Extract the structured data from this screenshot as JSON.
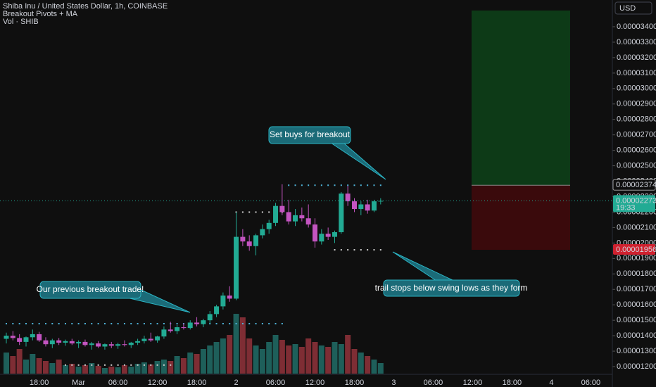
{
  "chart_data": {
    "type": "candlestick",
    "title": "Shiba Inu / United States Dollar, 1h, COINBASE",
    "indicators": [
      "Breakout Pivots + MA",
      "Vol · SHIB"
    ],
    "currency": "USD",
    "countdown": "19:33",
    "up_color": "#22ab94",
    "down_color": "#c354c0",
    "volume_up_color": "#1e5f5a",
    "volume_down_color": "#7e2d34",
    "grid": false,
    "categories": [
      null,
      null,
      null,
      null,
      null,
      "18:00",
      null,
      null,
      null,
      null,
      null,
      "Mar",
      null,
      null,
      null,
      null,
      null,
      "06:00",
      null,
      null,
      null,
      null,
      null,
      "12:00",
      null,
      null,
      null,
      null,
      null,
      "18:00",
      null,
      null,
      null,
      null,
      null,
      "2",
      null,
      null,
      null,
      null,
      null,
      "06:00",
      null,
      null,
      null,
      null,
      null,
      "12:00",
      null,
      null,
      null,
      null,
      null,
      "18:00",
      null,
      null,
      null,
      null
    ],
    "future_ticks": [
      "3",
      "06:00",
      "12:00",
      "18:00",
      "4",
      "06:00"
    ],
    "ohlc": [
      [
        1.38e-05,
        1.42e-05,
        1.35e-05,
        1.4e-05
      ],
      [
        1.4e-05,
        1.43e-05,
        1.37e-05,
        1.385e-05
      ],
      [
        1.385e-05,
        1.41e-05,
        1.34e-05,
        1.36e-05
      ],
      [
        1.36e-05,
        1.395e-05,
        1.33e-05,
        1.39e-05
      ],
      [
        1.39e-05,
        1.44e-05,
        1.37e-05,
        1.41e-05
      ],
      [
        1.41e-05,
        1.425e-05,
        1.36e-05,
        1.37e-05
      ],
      [
        1.37e-05,
        1.39e-05,
        1.33e-05,
        1.345e-05
      ],
      [
        1.345e-05,
        1.38e-05,
        1.32e-05,
        1.37e-05
      ],
      [
        1.37e-05,
        1.385e-05,
        1.34e-05,
        1.355e-05
      ],
      [
        1.355e-05,
        1.375e-05,
        1.335e-05,
        1.365e-05
      ],
      [
        1.365e-05,
        1.38e-05,
        1.34e-05,
        1.35e-05
      ],
      [
        1.35e-05,
        1.37e-05,
        1.32e-05,
        1.36e-05
      ],
      [
        1.36e-05,
        1.375e-05,
        1.33e-05,
        1.34e-05
      ],
      [
        1.34e-05,
        1.36e-05,
        1.31e-05,
        1.35e-05
      ],
      [
        1.35e-05,
        1.365e-05,
        1.32e-05,
        1.33e-05
      ],
      [
        1.33e-05,
        1.35e-05,
        1.31e-05,
        1.345e-05
      ],
      [
        1.345e-05,
        1.36e-05,
        1.32e-05,
        1.335e-05
      ],
      [
        1.335e-05,
        1.355e-05,
        1.315e-05,
        1.345e-05
      ],
      [
        1.345e-05,
        1.37e-05,
        1.33e-05,
        1.34e-05
      ],
      [
        1.34e-05,
        1.36e-05,
        1.32e-05,
        1.355e-05
      ],
      [
        1.355e-05,
        1.38e-05,
        1.34e-05,
        1.365e-05
      ],
      [
        1.365e-05,
        1.4e-05,
        1.35e-05,
        1.38e-05
      ],
      [
        1.38e-05,
        1.42e-05,
        1.36e-05,
        1.37e-05
      ],
      [
        1.37e-05,
        1.4e-05,
        1.355e-05,
        1.395e-05
      ],
      [
        1.395e-05,
        1.46e-05,
        1.38e-05,
        1.44e-05
      ],
      [
        1.44e-05,
        1.49e-05,
        1.42e-05,
        1.43e-05
      ],
      [
        1.43e-05,
        1.47e-05,
        1.41e-05,
        1.455e-05
      ],
      [
        1.455e-05,
        1.48e-05,
        1.44e-05,
        1.45e-05
      ],
      [
        1.45e-05,
        1.5e-05,
        1.44e-05,
        1.485e-05
      ],
      [
        1.485e-05,
        1.52e-05,
        1.46e-05,
        1.475e-05
      ],
      [
        1.475e-05,
        1.51e-05,
        1.455e-05,
        1.5e-05
      ],
      [
        1.5e-05,
        1.56e-05,
        1.48e-05,
        1.54e-05
      ],
      [
        1.54e-05,
        1.6e-05,
        1.52e-05,
        1.59e-05
      ],
      [
        1.59e-05,
        1.68e-05,
        1.57e-05,
        1.66e-05
      ],
      [
        1.66e-05,
        1.72e-05,
        1.62e-05,
        1.64e-05
      ],
      [
        1.64e-05,
        2.2e-05,
        1.63e-05,
        2.04e-05
      ],
      [
        2.04e-05,
        2.09e-05,
        1.98e-05,
        2.01e-05
      ],
      [
        2.01e-05,
        2.05e-05,
        1.95e-05,
        1.98e-05
      ],
      [
        1.98e-05,
        2.06e-05,
        1.92e-05,
        2.05e-05
      ],
      [
        2.05e-05,
        2.12e-05,
        2.03e-05,
        2.09e-05
      ],
      [
        2.09e-05,
        2.15e-05,
        2.06e-05,
        2.13e-05
      ],
      [
        2.13e-05,
        2.26e-05,
        2.11e-05,
        2.24e-05
      ],
      [
        2.24e-05,
        2.38e-05,
        2.18e-05,
        2.2e-05
      ],
      [
        2.2e-05,
        2.28e-05,
        2.12e-05,
        2.14e-05
      ],
      [
        2.14e-05,
        2.22e-05,
        2.11e-05,
        2.18e-05
      ],
      [
        2.18e-05,
        2.23e-05,
        2.14e-05,
        2.16e-05
      ],
      [
        2.16e-05,
        2.25e-05,
        2.1e-05,
        2.12e-05
      ],
      [
        2.12e-05,
        2.16e-05,
        1.97e-05,
        2.01e-05
      ],
      [
        2.01e-05,
        2.09e-05,
        1.99e-05,
        2.06e-05
      ],
      [
        2.06e-05,
        2.1e-05,
        2.02e-05,
        2.04e-05
      ],
      [
        2.04e-05,
        2.08e-05,
        2e-05,
        2.07e-05
      ],
      [
        2.07e-05,
        2.33e-05,
        2.06e-05,
        2.32e-05
      ],
      [
        2.32e-05,
        2.37e-05,
        2.24e-05,
        2.27e-05
      ],
      [
        2.27e-05,
        2.29e-05,
        2.2e-05,
        2.22e-05
      ],
      [
        2.22e-05,
        2.27e-05,
        2.18e-05,
        2.25e-05
      ],
      [
        2.25e-05,
        2.28e-05,
        2.19e-05,
        2.21e-05
      ],
      [
        2.21e-05,
        2.28e-05,
        2.2e-05,
        2.27e-05
      ],
      [
        2.27e-05,
        2.29e-05,
        2.25e-05,
        2.273e-05
      ]
    ],
    "volume": [
      30,
      25,
      35,
      20,
      28,
      22,
      18,
      15,
      20,
      12,
      14,
      10,
      12,
      15,
      11,
      8,
      10,
      9,
      12,
      10,
      14,
      16,
      13,
      18,
      20,
      18,
      25,
      22,
      30,
      28,
      35,
      40,
      45,
      50,
      55,
      85,
      80,
      50,
      40,
      35,
      45,
      55,
      48,
      40,
      42,
      38,
      50,
      45,
      40,
      38,
      45,
      42,
      55,
      35,
      30,
      25,
      20,
      15
    ],
    "pivot_high": [
      1.478e-05,
      1.478e-05,
      1.478e-05,
      1.478e-05,
      1.478e-05,
      1.478e-05,
      1.478e-05,
      1.478e-05,
      1.478e-05,
      1.478e-05,
      1.478e-05,
      1.478e-05,
      1.478e-05,
      1.478e-05,
      1.478e-05,
      1.478e-05,
      1.478e-05,
      1.478e-05,
      1.478e-05,
      1.478e-05,
      1.478e-05,
      1.478e-05,
      1.478e-05,
      1.478e-05,
      1.478e-05,
      1.478e-05,
      1.478e-05,
      1.478e-05,
      1.478e-05,
      1.478e-05,
      1.478e-05,
      1.478e-05,
      1.478e-05,
      1.478e-05,
      1.478e-05,
      1.478e-05,
      1.478e-05,
      1.478e-05,
      1.478e-05,
      1.478e-05,
      1.478e-05,
      1.478e-05,
      1.478e-05,
      2.374e-05,
      2.374e-05,
      2.374e-05,
      2.374e-05,
      2.374e-05,
      2.374e-05,
      2.374e-05,
      2.374e-05,
      2.374e-05,
      2.374e-05,
      2.374e-05,
      2.374e-05,
      2.374e-05,
      2.374e-05,
      2.374e-05
    ],
    "pivot_low": [
      null,
      null,
      null,
      null,
      null,
      null,
      null,
      null,
      null,
      1.21e-05,
      1.21e-05,
      1.21e-05,
      1.21e-05,
      1.21e-05,
      1.21e-05,
      1.21e-05,
      1.21e-05,
      1.21e-05,
      1.21e-05,
      1.21e-05,
      1.21e-05,
      1.21e-05,
      1.21e-05,
      1.21e-05,
      1.21e-05,
      1.21e-05,
      null,
      null,
      null,
      null,
      null,
      null,
      null,
      null,
      null,
      2.2e-05,
      2.2e-05,
      2.2e-05,
      2.2e-05,
      2.2e-05,
      2.2e-05,
      2.2e-05,
      2.2e-05,
      null,
      null,
      null,
      null,
      null,
      null,
      null,
      1.956e-05,
      1.956e-05,
      1.956e-05,
      1.956e-05,
      1.956e-05,
      1.956e-05,
      1.956e-05,
      1.956e-05
    ],
    "pivot_high_color": "#4fb3d9",
    "pivot_low_color": "#cfcfcf",
    "current_price": {
      "value": 2.273e-05,
      "label": "0.00002273"
    },
    "position": {
      "target": 3.505e-05,
      "entry": {
        "value": 2.374e-05,
        "label": "0.00002374"
      },
      "stop": {
        "value": 1.956e-05,
        "label": "0.00001956"
      },
      "target_color": "#0d3a17",
      "stop_color": "#3a0a0c"
    },
    "annotations": [
      "Set buys for breakout",
      "Our previous breakout trade!",
      "trail stops below swing lows as they form"
    ],
    "ylim": [
      1.15e-05,
      3.573e-05
    ],
    "yticks": [
      {
        "value": 1.2e-05,
        "label": "0.00001200"
      },
      {
        "value": 1.3e-05,
        "label": "0.00001300"
      },
      {
        "value": 1.4e-05,
        "label": "0.00001400"
      },
      {
        "value": 1.5e-05,
        "label": "0.00001500"
      },
      {
        "value": 1.6e-05,
        "label": "0.00001600"
      },
      {
        "value": 1.7e-05,
        "label": "0.00001700"
      },
      {
        "value": 1.8e-05,
        "label": "0.00001800"
      },
      {
        "value": 1.9e-05,
        "label": "0.00001900"
      },
      {
        "value": 2e-05,
        "label": "0.00002000"
      },
      {
        "value": 2.1e-05,
        "label": "0.00002100"
      },
      {
        "value": 2.2e-05,
        "label": "0.00002200"
      },
      {
        "value": 2.3e-05,
        "label": "0.00002300"
      },
      {
        "value": 2.4e-05,
        "label": "0.00002400"
      },
      {
        "value": 2.5e-05,
        "label": "0.00002500"
      },
      {
        "value": 2.6e-05,
        "label": "0.00002600"
      },
      {
        "value": 2.7e-05,
        "label": "0.00002700"
      },
      {
        "value": 2.8e-05,
        "label": "0.00002800"
      },
      {
        "value": 2.9e-05,
        "label": "0.00002900"
      },
      {
        "value": 3e-05,
        "label": "0.00003000"
      },
      {
        "value": 3.1e-05,
        "label": "0.00003100"
      },
      {
        "value": 3.2e-05,
        "label": "0.00003200"
      },
      {
        "value": 3.3e-05,
        "label": "0.00003300"
      },
      {
        "value": 3.4e-05,
        "label": "0.00003400"
      }
    ]
  }
}
